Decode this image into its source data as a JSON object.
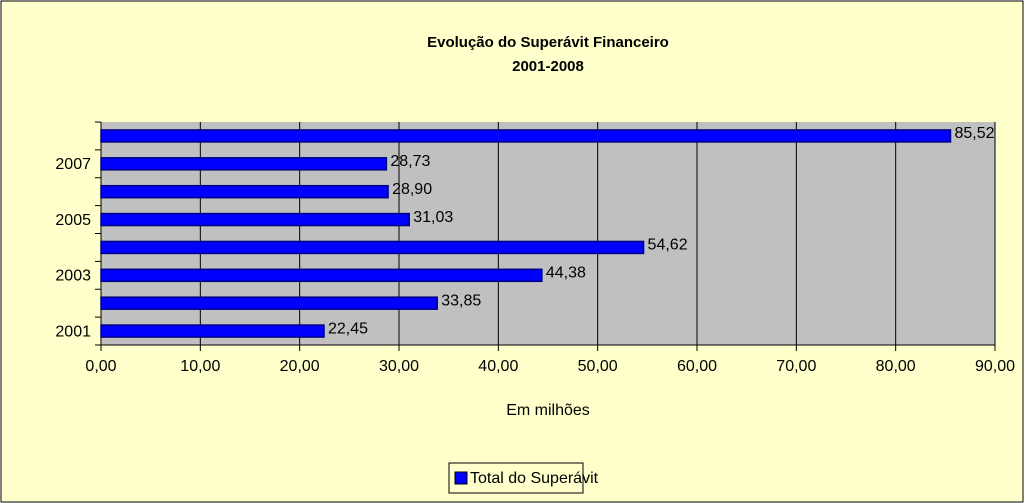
{
  "chart_data": {
    "type": "bar",
    "orientation": "horizontal",
    "title": "Evolução do Superávit Financeiro",
    "subtitle": "2001-2008",
    "x_label": "Em milhões",
    "categories": [
      "2001",
      null,
      "2003",
      null,
      "2005",
      null,
      "2007",
      null
    ],
    "series": [
      {
        "name": "Total do Superávit",
        "color": "#0000ff",
        "values": [
          22.45,
          33.85,
          44.38,
          54.62,
          31.03,
          28.9,
          28.73,
          85.52
        ],
        "value_labels": [
          "22,45",
          "33,85",
          "44,38",
          "54,62",
          "31,03",
          "28,90",
          "28,73",
          "85,52"
        ]
      }
    ],
    "xlim": [
      0,
      90
    ],
    "xticks": [
      {
        "value": 0,
        "label": "0,00"
      },
      {
        "value": 10,
        "label": "10,00"
      },
      {
        "value": 20,
        "label": "20,00"
      },
      {
        "value": 30,
        "label": "30,00"
      },
      {
        "value": 40,
        "label": "40,00"
      },
      {
        "value": 50,
        "label": "50,00"
      },
      {
        "value": 60,
        "label": "60,00"
      },
      {
        "value": 70,
        "label": "70,00"
      },
      {
        "value": 80,
        "label": "80,00"
      },
      {
        "value": 90,
        "label": "90,00"
      }
    ],
    "grid": true,
    "legend": "bottom"
  }
}
